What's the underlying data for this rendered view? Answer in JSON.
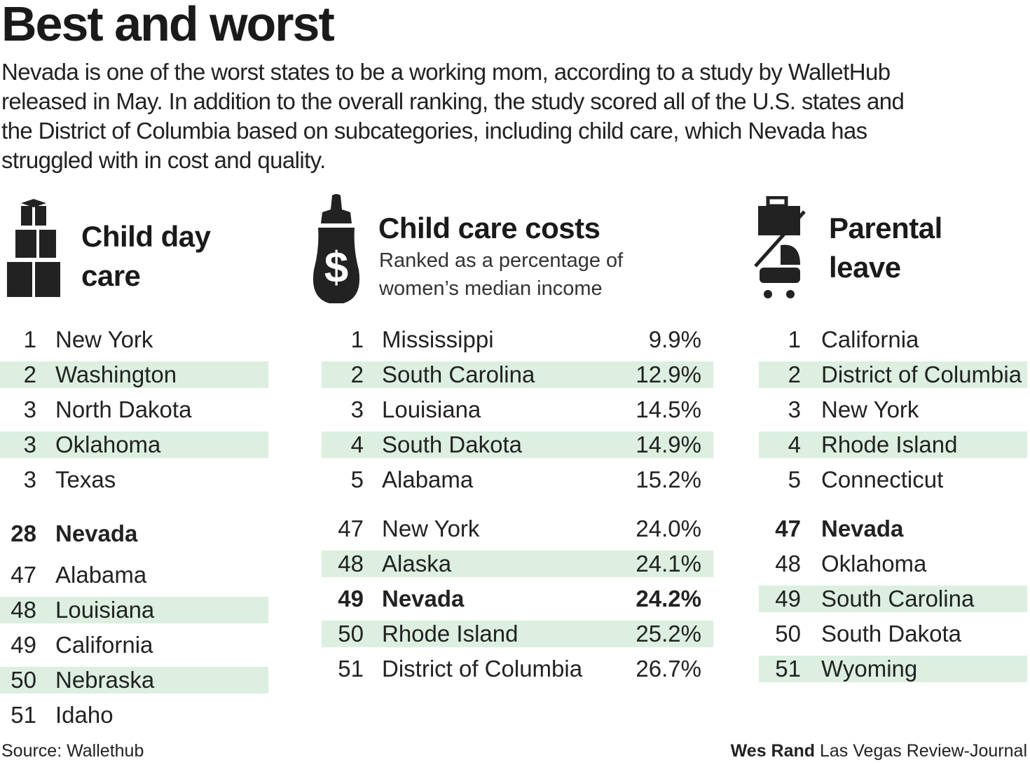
{
  "header": {
    "title": "Best and worst",
    "description": [
      "Nevada is one of the worst states to be a working mom, according to a study by WalletHub",
      "released in May. In addition to the overall ranking, the study scored all of the U.S. states and",
      "the District of Columbia based on subcategories, including child care, which Nevada has",
      "struggled with in cost and quality."
    ]
  },
  "sections": [
    {
      "title": [
        "Child day",
        "care"
      ],
      "best": [
        {
          "rank": "1",
          "name": "New York"
        },
        {
          "rank": "2",
          "name": "Washington",
          "shaded": true
        },
        {
          "rank": "3",
          "name": "North Dakota"
        },
        {
          "rank": "3",
          "name": "Oklahoma",
          "shaded": true
        },
        {
          "rank": "3",
          "name": "Texas"
        }
      ],
      "worst": [
        {
          "rank": "28",
          "name": "Nevada",
          "bold": true
        },
        {
          "rank": "47",
          "name": "Alabama"
        },
        {
          "rank": "48",
          "name": "Louisiana",
          "shaded": true
        },
        {
          "rank": "49",
          "name": "California"
        },
        {
          "rank": "50",
          "name": "Nebraska",
          "shaded": true
        },
        {
          "rank": "51",
          "name": "Idaho"
        }
      ]
    },
    {
      "title": [
        "Child care costs"
      ],
      "subtitle": [
        "Ranked as a percentage of",
        "women’s median income"
      ],
      "best": [
        {
          "rank": "1",
          "name": "Mississippi",
          "value": "9.9%"
        },
        {
          "rank": "2",
          "name": "South Carolina",
          "value": "12.9%",
          "shaded": true
        },
        {
          "rank": "3",
          "name": "Louisiana",
          "value": "14.5%"
        },
        {
          "rank": "4",
          "name": "South Dakota",
          "value": "14.9%",
          "shaded": true
        },
        {
          "rank": "5",
          "name": "Alabama",
          "value": "15.2%"
        }
      ],
      "worst": [
        {
          "rank": "47",
          "name": "New York",
          "value": "24.0%"
        },
        {
          "rank": "48",
          "name": "Alaska",
          "value": "24.1%",
          "shaded": true
        },
        {
          "rank": "49",
          "name": "Nevada",
          "value": "24.2%",
          "bold": true
        },
        {
          "rank": "50",
          "name": "Rhode Island",
          "value": "25.2%",
          "shaded": true
        },
        {
          "rank": "51",
          "name": "District of Columbia",
          "value": "26.7%"
        }
      ]
    },
    {
      "title": [
        "Parental",
        "leave"
      ],
      "best": [
        {
          "rank": "1",
          "name": "California"
        },
        {
          "rank": "2",
          "name": "District of Columbia",
          "shaded": true
        },
        {
          "rank": "3",
          "name": "New York"
        },
        {
          "rank": "4",
          "name": "Rhode Island",
          "shaded": true
        },
        {
          "rank": "5",
          "name": "Connecticut"
        }
      ],
      "worst": [
        {
          "rank": "47",
          "name": "Nevada",
          "bold": true
        },
        {
          "rank": "48",
          "name": "Oklahoma"
        },
        {
          "rank": "49",
          "name": "South Carolina",
          "shaded": true
        },
        {
          "rank": "50",
          "name": "South Dakota"
        },
        {
          "rank": "51",
          "name": "Wyoming",
          "shaded": true
        }
      ]
    }
  ],
  "footer": {
    "source": "Source: Wallethub",
    "author": "Wes Rand",
    "outlet": "Las Vegas Review-Journal"
  }
}
